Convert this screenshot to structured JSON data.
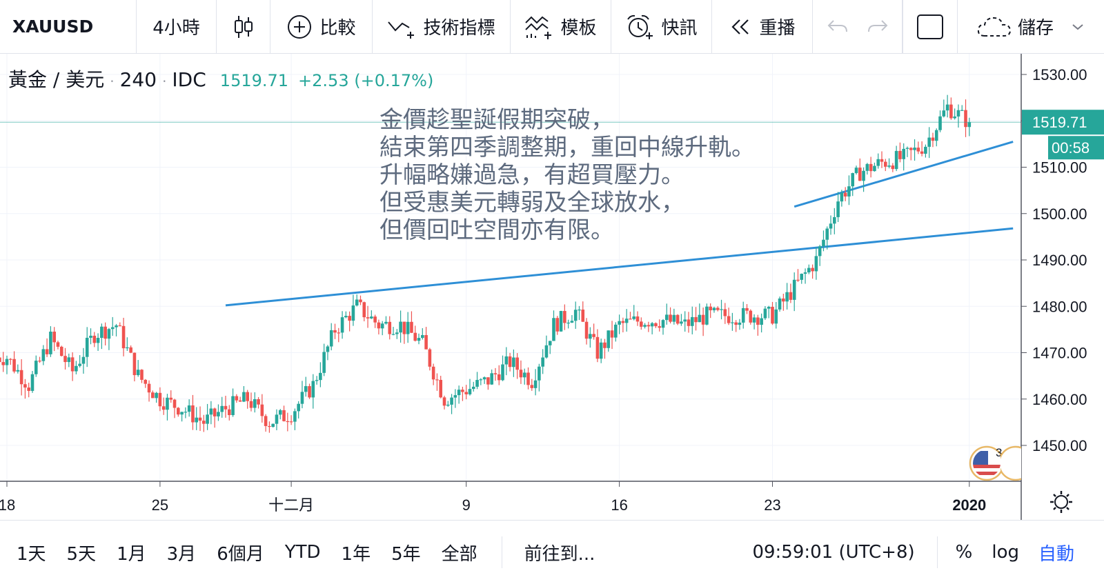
{
  "toolbar": {
    "symbol": "XAUUSD",
    "interval": "4小時",
    "compare": "比較",
    "indicators": "技術指標",
    "templates": "模板",
    "alerts": "快訊",
    "replay": "重播",
    "save": "儲存"
  },
  "legend": {
    "name": "黃金 / 美元",
    "interval": "240",
    "source": "IDC",
    "price": "1519.71",
    "change": "+2.53 (+0.17%)",
    "dot": "·"
  },
  "annotation": "金價趁聖誕假期突破，\n結束第四季調整期，重回中線升軌。\n升幅略嫌過急，有超買壓力。\n但受惠美元轉弱及全球放水，\n但價回吐空間亦有限。",
  "price_axis": {
    "current_price": "1519.71",
    "countdown": "00:58"
  },
  "events_badge": {
    "count": "3",
    "icon": "us-flag-icon"
  },
  "colors": {
    "up": "#26a69a",
    "down": "#ef5350",
    "trendline": "#2e8fd6",
    "price_line": "#26a69a"
  },
  "chart_data": {
    "type": "candlestick",
    "title": "黃金 / 美元",
    "y_ticks": [
      "1450.00",
      "1460.00",
      "1470.00",
      "1480.00",
      "1490.00",
      "1500.00",
      "1510.00",
      "1520.00",
      "1530.00"
    ],
    "ylim": [
      1442,
      1536
    ],
    "x_ticks": [
      {
        "label": "18",
        "date": "2019-11-18"
      },
      {
        "label": "25",
        "date": "2019-11-25"
      },
      {
        "label": "十二月",
        "date": "2019-12-01"
      },
      {
        "label": "9",
        "date": "2019-12-09"
      },
      {
        "label": "16",
        "date": "2019-12-16"
      },
      {
        "label": "23",
        "date": "2019-12-23"
      },
      {
        "label": "2020",
        "date": "2020-01-01"
      }
    ],
    "close_path": [
      [
        "2019-11-18",
        1469
      ],
      [
        "2019-11-19",
        1463
      ],
      [
        "2019-11-20",
        1473
      ],
      [
        "2019-11-21",
        1466
      ],
      [
        "2019-11-22",
        1474
      ],
      [
        "2019-11-23",
        1476
      ],
      [
        "2019-11-24",
        1465
      ],
      [
        "2019-11-25",
        1460
      ],
      [
        "2019-11-26",
        1458
      ],
      [
        "2019-11-27",
        1455
      ],
      [
        "2019-11-28",
        1458
      ],
      [
        "2019-11-29",
        1460
      ],
      [
        "2019-11-30",
        1455
      ],
      [
        "2019-12-01",
        1457
      ],
      [
        "2019-12-02",
        1463
      ],
      [
        "2019-12-03",
        1475
      ],
      [
        "2019-12-04",
        1480
      ],
      [
        "2019-12-05",
        1476
      ],
      [
        "2019-12-06",
        1476
      ],
      [
        "2019-12-07",
        1472
      ],
      [
        "2019-12-08",
        1460
      ],
      [
        "2019-12-09",
        1462
      ],
      [
        "2019-12-10",
        1464
      ],
      [
        "2019-12-11",
        1468
      ],
      [
        "2019-12-12",
        1464
      ],
      [
        "2019-12-13",
        1476
      ],
      [
        "2019-12-14",
        1479
      ],
      [
        "2019-12-15",
        1470
      ],
      [
        "2019-12-16",
        1476
      ],
      [
        "2019-12-17",
        1477
      ],
      [
        "2019-12-18",
        1477
      ],
      [
        "2019-12-19",
        1476
      ],
      [
        "2019-12-20",
        1478
      ],
      [
        "2019-12-21",
        1478
      ],
      [
        "2019-12-22",
        1478
      ],
      [
        "2019-12-23",
        1478
      ],
      [
        "2019-12-24",
        1484
      ],
      [
        "2019-12-25",
        1490
      ],
      [
        "2019-12-26",
        1503
      ],
      [
        "2019-12-27",
        1509
      ],
      [
        "2019-12-28",
        1511
      ],
      [
        "2019-12-29",
        1512
      ],
      [
        "2019-12-30",
        1515
      ],
      [
        "2019-12-31",
        1523
      ],
      [
        "2020-01-01",
        1519.71
      ]
    ],
    "candles_per_day": 6,
    "trendlines": [
      {
        "x1": "2019-11-28",
        "y1": 1480.2,
        "x2": "2020-01-03",
        "y2": 1496.8
      },
      {
        "x1": "2019-12-24",
        "y1": 1501.5,
        "x2": "2020-01-03",
        "y2": 1515.5
      }
    ],
    "last_price": 1519.71,
    "grid": true
  },
  "bottombar": {
    "ranges": [
      "1天",
      "5天",
      "1月",
      "3月",
      "6個月",
      "YTD",
      "1年",
      "5年",
      "全部"
    ],
    "goto": "前往到...",
    "clock": "09:59:01 (UTC+8)",
    "percent": "%",
    "log": "log",
    "auto": "自動"
  }
}
